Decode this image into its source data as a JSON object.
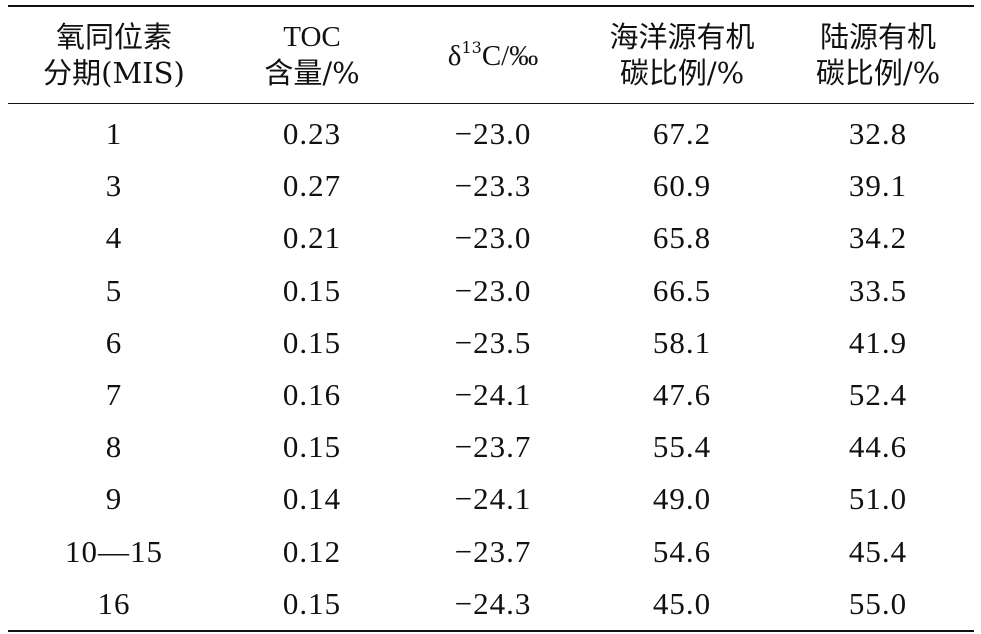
{
  "table": {
    "headers": [
      {
        "line1": "氧同位素",
        "line2": "分期(MIS)"
      },
      {
        "line1": "TOC",
        "line2": "含量/%"
      },
      {
        "delta": "δ",
        "sup": "13",
        "rest": "C/‰"
      },
      {
        "line1": "海洋源有机",
        "line2": "碳比例/%"
      },
      {
        "line1": "陆源有机",
        "line2": "碳比例/%"
      }
    ],
    "rows": [
      [
        "1",
        "0.23",
        "−23.0",
        "67.2",
        "32.8"
      ],
      [
        "3",
        "0.27",
        "−23.3",
        "60.9",
        "39.1"
      ],
      [
        "4",
        "0.21",
        "−23.0",
        "65.8",
        "34.2"
      ],
      [
        "5",
        "0.15",
        "−23.0",
        "66.5",
        "33.5"
      ],
      [
        "6",
        "0.15",
        "−23.5",
        "58.1",
        "41.9"
      ],
      [
        "7",
        "0.16",
        "−24.1",
        "47.6",
        "52.4"
      ],
      [
        "8",
        "0.15",
        "−23.7",
        "55.4",
        "44.6"
      ],
      [
        "9",
        "0.14",
        "−24.1",
        "49.0",
        "51.0"
      ],
      [
        "10—15",
        "0.12",
        "−23.7",
        "54.6",
        "45.4"
      ],
      [
        "16",
        "0.15",
        "−24.3",
        "45.0",
        "55.0"
      ]
    ]
  }
}
